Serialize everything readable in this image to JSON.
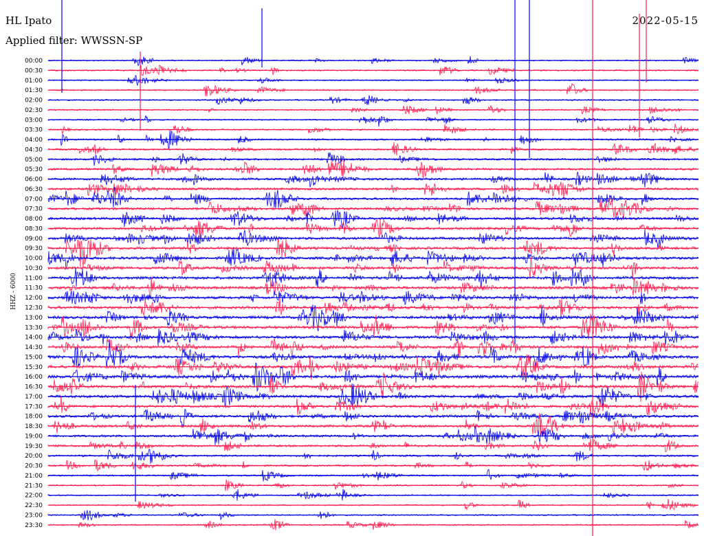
{
  "header": {
    "station": "HL Ipato",
    "filter": "Applied filter: WWSSN-SP",
    "date": "2022-05-15",
    "channel": "HHZ - 6000"
  },
  "colors": {
    "odd_trace": "#0000e6",
    "even_trace": "#ff1a4d",
    "background": "#ffffff"
  },
  "chart_data": {
    "type": "line",
    "title": "",
    "xlabel": "",
    "ylabel": "HHZ - 6000",
    "y_tick_labels": [
      "00:00",
      "00:30",
      "01:00",
      "01:30",
      "02:00",
      "02:30",
      "03:00",
      "03:30",
      "04:00",
      "04:30",
      "05:00",
      "05:30",
      "06:00",
      "06:30",
      "07:00",
      "07:30",
      "08:00",
      "08:30",
      "09:00",
      "09:30",
      "10:00",
      "10:30",
      "11:00",
      "11:30",
      "12:00",
      "12:30",
      "13:00",
      "13:30",
      "14:00",
      "14:30",
      "15:00",
      "15:30",
      "16:00",
      "16:30",
      "17:00",
      "17:30",
      "18:00",
      "18:30",
      "19:00",
      "19:30",
      "20:00",
      "20:30",
      "21:00",
      "21:30",
      "22:00",
      "22:30",
      "23:00",
      "23:30"
    ],
    "trace_minutes": 30,
    "trace_colors": [
      "#0000e6",
      "#ff1a4d"
    ],
    "noise_level": [
      0.15,
      0.2,
      0.15,
      0.2,
      0.2,
      0.2,
      0.2,
      0.25,
      0.35,
      0.4,
      0.45,
      0.55,
      0.6,
      0.6,
      0.6,
      0.65,
      0.7,
      0.7,
      0.75,
      0.75,
      0.8,
      0.8,
      0.85,
      0.85,
      0.8,
      0.85,
      0.85,
      0.85,
      0.85,
      0.85,
      0.9,
      0.95,
      1.0,
      0.9,
      0.8,
      0.7,
      0.7,
      0.65,
      0.6,
      0.5,
      0.4,
      0.35,
      0.3,
      0.25,
      0.2,
      0.2,
      0.2,
      0.2
    ]
  }
}
